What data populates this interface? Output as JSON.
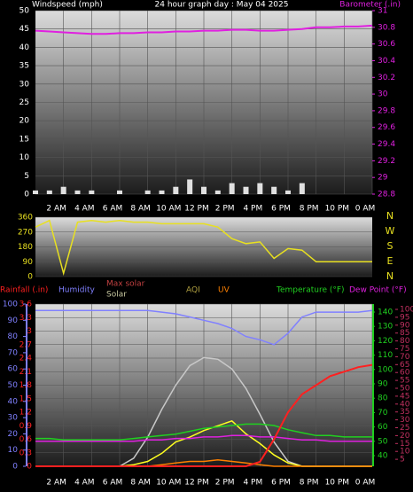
{
  "chart_data": [
    {
      "type": "wind-barometer",
      "title_left": "Windspeed (mph)",
      "title": "24 hour graph day : May 04 2025",
      "title_right": "Barometer (.in)",
      "x": [
        0,
        1,
        2,
        3,
        4,
        5,
        6,
        7,
        8,
        9,
        10,
        11,
        12,
        13,
        14,
        15,
        16,
        17,
        18,
        19,
        20,
        21,
        22,
        23,
        24
      ],
      "xlim": [
        0,
        24
      ],
      "xticks": [
        {
          "value": 2,
          "label": "2 AM"
        },
        {
          "value": 4,
          "label": "4 AM"
        },
        {
          "value": 6,
          "label": "6 AM"
        },
        {
          "value": 8,
          "label": "8 AM"
        },
        {
          "value": 10,
          "label": "10 AM"
        },
        {
          "value": 12,
          "label": "12 PM"
        },
        {
          "value": 14,
          "label": "2 PM"
        },
        {
          "value": 16,
          "label": "4 PM"
        },
        {
          "value": 18,
          "label": "6 PM"
        },
        {
          "value": 20,
          "label": "8 PM"
        },
        {
          "value": 22,
          "label": "10 PM"
        },
        {
          "value": 24,
          "label": "0 AM"
        }
      ],
      "ylim": [
        0,
        50
      ],
      "yticks": [
        0,
        5,
        10,
        15,
        20,
        25,
        30,
        35,
        40,
        45,
        50
      ],
      "y2lim": [
        28.8,
        31
      ],
      "y2ticks": [
        28.8,
        29,
        29.2,
        29.4,
        29.6,
        29.8,
        30,
        30.2,
        30.4,
        30.6,
        30.8,
        31
      ],
      "series": [
        {
          "color": "#e0e0e0",
          "values": [
            1,
            1,
            2,
            1,
            1,
            0,
            1,
            0,
            1,
            1,
            2,
            4,
            2,
            1,
            3,
            2,
            3,
            2,
            1,
            3,
            0,
            0,
            0,
            0,
            0
          ]
        },
        {
          "color": "#e020e0",
          "axis": "y2",
          "values": [
            30.76,
            30.75,
            30.74,
            30.73,
            30.72,
            30.72,
            30.73,
            30.73,
            30.74,
            30.74,
            30.75,
            30.75,
            30.76,
            30.76,
            30.77,
            30.77,
            30.76,
            30.76,
            30.77,
            30.78,
            30.8,
            30.8,
            30.81,
            30.81,
            30.82
          ]
        }
      ]
    },
    {
      "type": "direction",
      "x": [
        0,
        1,
        2,
        3,
        4,
        5,
        6,
        7,
        8,
        9,
        10,
        11,
        12,
        13,
        14,
        15,
        16,
        17,
        18,
        19,
        20,
        21,
        22,
        23,
        24
      ],
      "xlim": [
        0,
        24
      ],
      "ylim": [
        0,
        360
      ],
      "yticks": [
        0,
        90,
        180,
        270,
        360
      ],
      "compass": [
        "N",
        "W",
        "S",
        "E",
        "N"
      ],
      "series": [
        {
          "color": "#e8e020",
          "values": [
            300,
            340,
            20,
            330,
            340,
            330,
            340,
            330,
            330,
            320,
            320,
            320,
            320,
            300,
            230,
            200,
            210,
            110,
            170,
            160,
            90,
            90,
            90,
            90,
            90
          ]
        }
      ]
    },
    {
      "type": "weather",
      "x": [
        0,
        1,
        2,
        3,
        4,
        5,
        6,
        7,
        8,
        9,
        10,
        11,
        12,
        13,
        14,
        15,
        16,
        17,
        18,
        19,
        20,
        21,
        22,
        23,
        24
      ],
      "xlim": [
        0,
        24
      ],
      "xticks": [
        {
          "value": 2,
          "label": "2 AM"
        },
        {
          "value": 4,
          "label": "4 AM"
        },
        {
          "value": 6,
          "label": "6 AM"
        },
        {
          "value": 8,
          "label": "8 AM"
        },
        {
          "value": 10,
          "label": "10 AM"
        },
        {
          "value": 12,
          "label": "12 PM"
        },
        {
          "value": 14,
          "label": "2 PM"
        },
        {
          "value": 16,
          "label": "4 PM"
        },
        {
          "value": 18,
          "label": "6 PM"
        },
        {
          "value": 20,
          "label": "8 PM"
        },
        {
          "value": 22,
          "label": "10 PM"
        },
        {
          "value": 24,
          "label": "0 AM"
        }
      ],
      "ylim": [
        0,
        3.6
      ],
      "yticks": [
        0,
        0.3,
        0.6,
        0.9,
        1.2,
        1.5,
        1.8,
        2.1,
        2.4,
        2.7,
        3,
        3.3,
        3.6
      ],
      "humidity_lim": [
        0,
        100
      ],
      "humidity_ticks": [
        0,
        10,
        20,
        30,
        40,
        50,
        60,
        70,
        80,
        90,
        100
      ],
      "y2lim": [
        40,
        140
      ],
      "y2ticks": [
        40,
        50,
        60,
        70,
        80,
        90,
        100,
        110,
        120,
        130,
        140
      ],
      "dewpoint_lim": [
        0,
        100
      ],
      "dewpoint_ticks": [
        5,
        10,
        15,
        20,
        25,
        30,
        35,
        40,
        45,
        50,
        55,
        60,
        65,
        70,
        75,
        80,
        85,
        90,
        95,
        100
      ],
      "annotations": [
        "AQI"
      ],
      "series": [
        {
          "name": "Max solar",
          "color": "#c8c8c8",
          "axis": "humidity",
          "values": [
            0,
            0,
            0,
            0,
            0,
            0,
            0,
            5,
            18,
            35,
            50,
            62,
            67,
            66,
            60,
            48,
            32,
            15,
            3,
            0,
            0,
            0,
            0,
            0,
            0
          ]
        },
        {
          "name": "Solar",
          "color": "#ffff20",
          "axis": "humidity",
          "values": [
            0,
            0,
            0,
            0,
            0,
            0,
            0,
            1,
            3,
            8,
            15,
            18,
            22,
            25,
            28,
            20,
            14,
            7,
            2,
            0,
            0,
            0,
            0,
            0,
            0
          ]
        },
        {
          "name": "UV",
          "color": "#ff8000",
          "axis": "humidity",
          "values": [
            0,
            0,
            0,
            0,
            0,
            0,
            0,
            0,
            0,
            1,
            2,
            3,
            3,
            4,
            3,
            2,
            1,
            0,
            0,
            0,
            0,
            0,
            0,
            0,
            0
          ]
        },
        {
          "name": "Humidity",
          "color": "#8080ff",
          "axis": "humidity",
          "values": [
            96,
            96,
            96,
            96,
            96,
            96,
            96,
            96,
            96,
            95,
            94,
            92,
            90,
            88,
            85,
            80,
            78,
            75,
            82,
            92,
            95,
            95,
            95,
            95,
            96
          ]
        },
        {
          "name": "Temperature (°F)",
          "color": "#20d020",
          "axis": "y2",
          "values": [
            52,
            52,
            51,
            51,
            51,
            51,
            51,
            52,
            53,
            54,
            55,
            57,
            59,
            60,
            61,
            62,
            62,
            61,
            58,
            56,
            54,
            54,
            53,
            53,
            53
          ]
        },
        {
          "name": "Dew Point (°F)",
          "color": "#e020e0",
          "axis": "y2",
          "values": [
            50,
            50,
            50,
            50,
            50,
            50,
            50,
            50,
            51,
            51,
            52,
            52,
            53,
            53,
            54,
            54,
            53,
            53,
            52,
            51,
            51,
            50,
            50,
            50,
            50
          ]
        },
        {
          "name": "Rainfall (.in)",
          "color": "#ff2020",
          "axis": "y",
          "values": [
            0,
            0,
            0,
            0,
            0,
            0,
            0,
            0,
            0,
            0,
            0,
            0,
            0,
            0,
            0,
            0,
            0.1,
            0.6,
            1.2,
            1.6,
            1.8,
            2,
            2.1,
            2.2,
            2.25
          ]
        }
      ]
    }
  ]
}
